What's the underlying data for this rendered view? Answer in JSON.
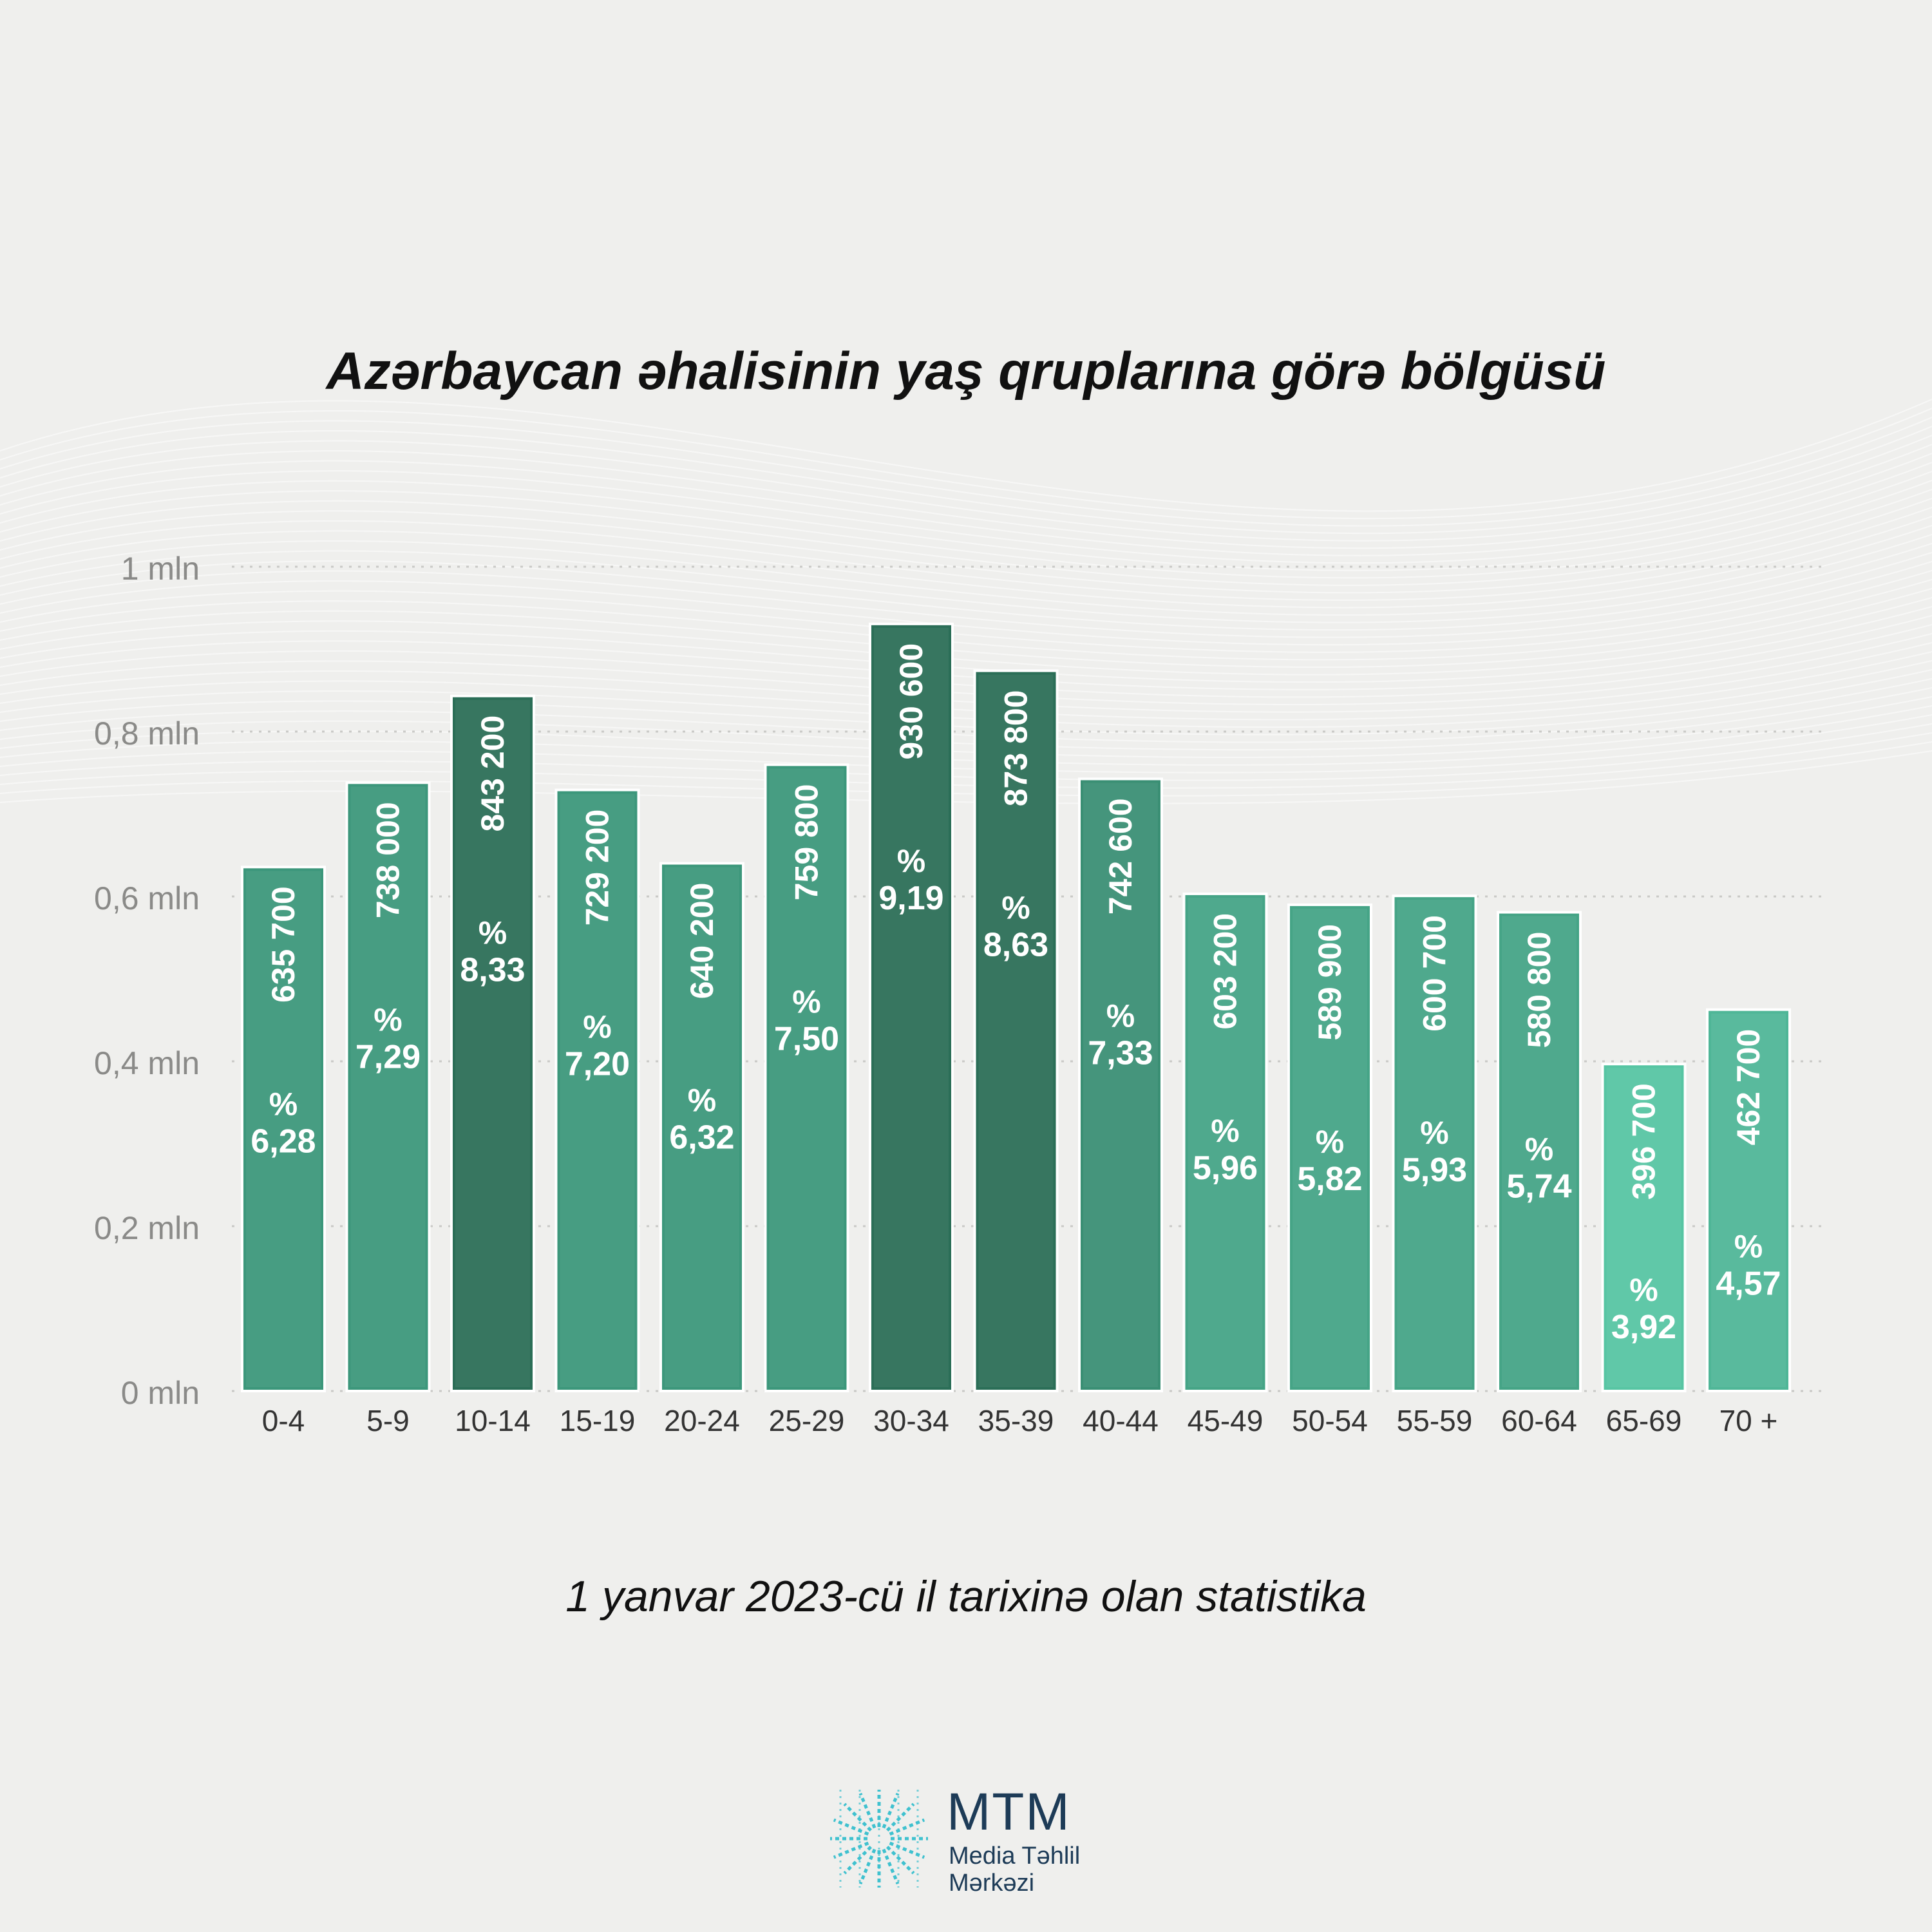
{
  "chart_data": {
    "type": "bar",
    "title": "Azərbaycan əhalisinin yaş qruplarına görə bölgüsü",
    "subtitle": "1 yanvar 2023-cü il tarixinə olan statistika",
    "xlabel": "",
    "ylabel": "",
    "ylim": [
      0,
      1000000
    ],
    "grid": true,
    "y_ticks": [
      0,
      200000,
      400000,
      600000,
      800000,
      1000000
    ],
    "y_tick_labels": [
      "0 mln",
      "0,2 mln",
      "0,4 mln",
      "0,6 mln",
      "0,8 mln",
      "1 mln"
    ],
    "categories": [
      "0-4",
      "5-9",
      "10-14",
      "15-19",
      "20-24",
      "25-29",
      "30-34",
      "35-39",
      "40-44",
      "45-49",
      "50-54",
      "55-59",
      "60-64",
      "65-69",
      "70 +"
    ],
    "values": [
      635700,
      738000,
      843200,
      729200,
      640200,
      759800,
      930600,
      873800,
      742600,
      603200,
      589900,
      600700,
      580800,
      396700,
      462700
    ],
    "value_labels": [
      "635 700",
      "738 000",
      "843 200",
      "729 200",
      "640 200",
      "759 800",
      "930 600",
      "873 800",
      "742 600",
      "603 200",
      "589 900",
      "600 700",
      "580 800",
      "396 700",
      "462 700"
    ],
    "percent_symbol": "%",
    "percent_labels": [
      "6,28",
      "7,29",
      "8,33",
      "7,20",
      "6,32",
      "7,50",
      "9,19",
      "8,63",
      "7,33",
      "5,96",
      "5,82",
      "5,93",
      "5,74",
      "3,92",
      "4,57"
    ],
    "colors": [
      "#3c977b",
      "#3c977b",
      "#2b6e57",
      "#3c977b",
      "#3c977b",
      "#3c977b",
      "#2b6e57",
      "#2b6e57",
      "#3a8f74",
      "#45a486",
      "#45a486",
      "#45a486",
      "#45a486",
      "#57c5a3",
      "#4fb697"
    ]
  },
  "logo": {
    "abbr": "MTM",
    "line1": "Media Təhlil",
    "line2": "Mərkəzi",
    "color": "#1d3b57",
    "mark_color": "#3fc1cf"
  }
}
